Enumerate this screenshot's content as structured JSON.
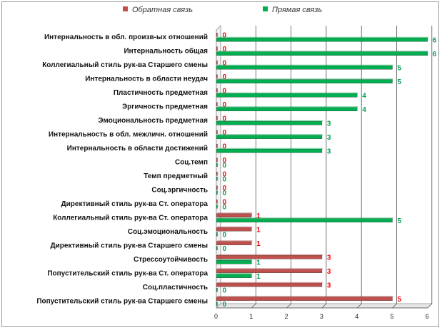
{
  "chart_data": {
    "type": "bar",
    "orientation": "horizontal",
    "legend_position": "top",
    "grid": true,
    "xlim": [
      0,
      6
    ],
    "x_ticks": [
      "0",
      "1",
      "2",
      "3",
      "4",
      "5",
      "6"
    ],
    "colors": {
      "reverse": "#c0504d",
      "direct": "#00b050",
      "reverse_label": "#ff0000",
      "direct_label": "#00a050"
    },
    "categories": [
      "Интернальность в обл. произв-ых отношений",
      "Интернальность общая",
      "Коллегиальный стиль рук-ва Старшего смены",
      "Интернальность в области неудач",
      "Пластичность предметная",
      "Эргичность предметная",
      "Эмоциональность предметная",
      "Интернальность в обл. межличн. отношений",
      "Интернальность в области достижений",
      "Соц.темп",
      "Темп предметный",
      "Соц.эргичность",
      "Директивный стиль рук-ва Ст. оператора",
      "Коллегиальный стиль рук-ва Ст. оператора",
      "Соц.эмоциональность",
      "Директивный стиль рук-ва Старшего смены",
      "Стрессоутойчивость",
      "Попустительский стиль рук-ва Ст. оператора",
      "Соц.пластичность",
      "Попустительский стиль рук-ва Старшего смены"
    ],
    "series": [
      {
        "name": "Обратная связь",
        "values": [
          0,
          0,
          0,
          0,
          0,
          0,
          0,
          0,
          0,
          0,
          0,
          0,
          0,
          1,
          1,
          1,
          3,
          3,
          3,
          5
        ]
      },
      {
        "name": "Прямая связь",
        "values": [
          6,
          6,
          5,
          5,
          4,
          4,
          3,
          3,
          3,
          0,
          0,
          0,
          0,
          5,
          0,
          0,
          1,
          1,
          0,
          0
        ]
      }
    ]
  }
}
